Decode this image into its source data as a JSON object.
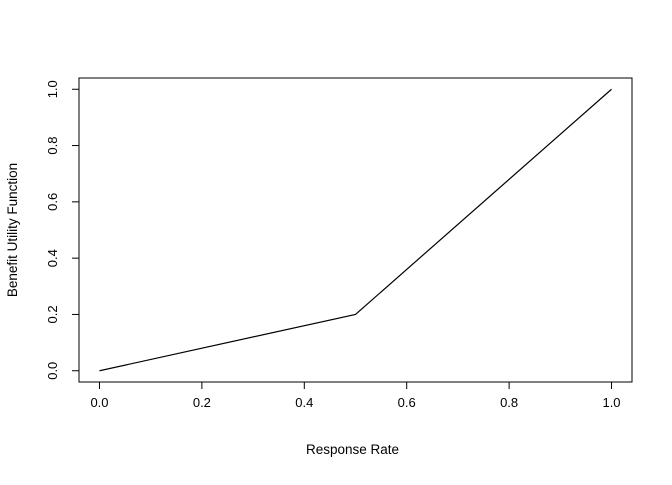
{
  "chart_data": {
    "type": "line",
    "title": "",
    "xlabel": "Response Rate",
    "ylabel": "Benefit Utility Function",
    "x": [
      0.0,
      0.5,
      1.0
    ],
    "y": [
      0.0,
      0.2,
      1.0
    ],
    "x_ticks": [
      0.0,
      0.2,
      0.4,
      0.6,
      0.8,
      1.0
    ],
    "y_ticks": [
      0.0,
      0.2,
      0.4,
      0.6,
      0.8,
      1.0
    ],
    "x_tick_labels": [
      "0.0",
      "0.2",
      "0.4",
      "0.6",
      "0.8",
      "1.0"
    ],
    "y_tick_labels": [
      "0.0",
      "0.2",
      "0.4",
      "0.6",
      "0.8",
      "1.0"
    ],
    "xlim": [
      -0.04,
      1.04
    ],
    "ylim": [
      -0.04,
      1.04
    ],
    "grid": false,
    "legend": null,
    "line_color": "#000000",
    "axis_color": "#000000",
    "background": "#ffffff"
  }
}
